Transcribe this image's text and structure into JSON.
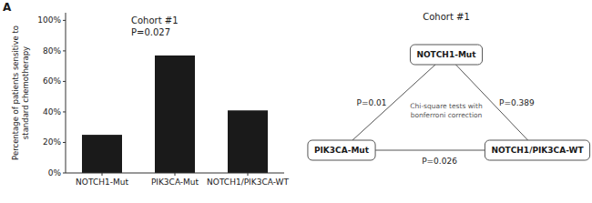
{
  "chart_data": [
    {
      "type": "bar",
      "panel_label": "A",
      "categories": [
        "NOTCH1-Mut",
        "PIK3CA-Mut",
        "NOTCH1/PIK3CA-WT"
      ],
      "values": [
        0.25,
        0.77,
        0.41
      ],
      "color": "#1a1a1a",
      "y_label": "Percentage of patients sensitive to\nstandard chemotherapy",
      "ylim": [
        0,
        1.05
      ],
      "yticks": [
        {
          "value": 0.0,
          "label": "0%"
        },
        {
          "value": 0.2,
          "label": "20%"
        },
        {
          "value": 0.4,
          "label": "40%"
        },
        {
          "value": 0.6,
          "label": "60%"
        },
        {
          "value": 0.8,
          "label": "80%"
        },
        {
          "value": 1.0,
          "label": "100%"
        }
      ],
      "grid": false,
      "annotations": [
        "Cohort #1",
        "P=0.027"
      ]
    },
    {
      "type": "diagram",
      "title": "Cohort #1",
      "nodes": [
        "NOTCH1-Mut",
        "PIK3CA-Mut",
        "NOTCH1/PIK3CA-WT"
      ],
      "edges": [
        {
          "from": 0,
          "to": 1,
          "label": "P=0.01"
        },
        {
          "from": 0,
          "to": 2,
          "label": "P=0.389"
        },
        {
          "from": 1,
          "to": 2,
          "label": "P=0.026"
        }
      ],
      "annotations": [
        "Chi-square tests with\nbonferroni correction"
      ]
    }
  ]
}
